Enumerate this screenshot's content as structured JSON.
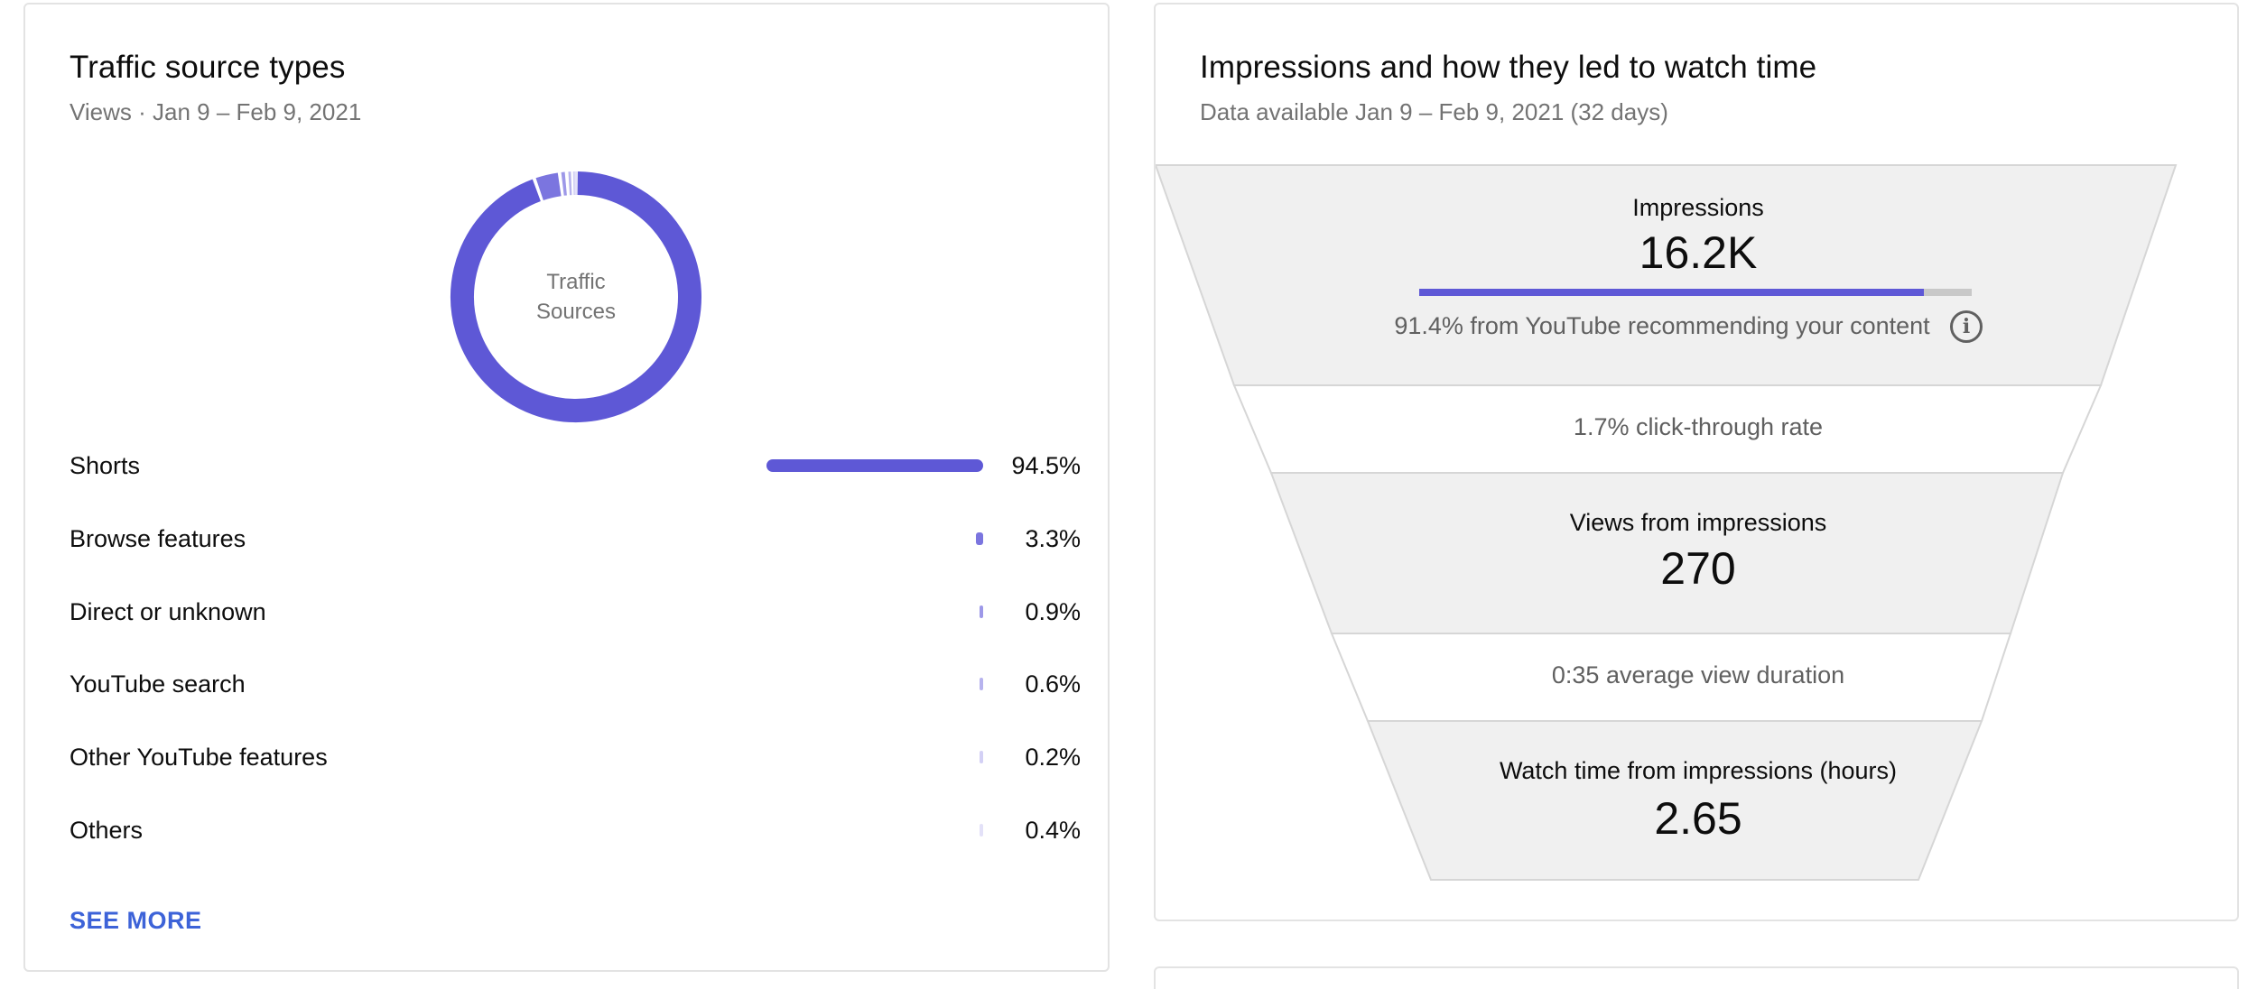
{
  "traffic": {
    "title": "Traffic source types",
    "subtitle": "Views · Jan 9 – Feb 9, 2021",
    "donut_center_line1": "Traffic",
    "donut_center_line2": "Sources",
    "see_more_label": "SEE MORE",
    "sources": [
      {
        "label": "Shorts",
        "value_text": "94.5%",
        "value": 94.5,
        "color": "#5e58d6"
      },
      {
        "label": "Browse features",
        "value_text": "3.3%",
        "value": 3.3,
        "color": "#7b75df"
      },
      {
        "label": "Direct or unknown",
        "value_text": "0.9%",
        "value": 0.9,
        "color": "#9d98e8"
      },
      {
        "label": "YouTube search",
        "value_text": "0.6%",
        "value": 0.6,
        "color": "#b7b3ee"
      },
      {
        "label": "Other YouTube features",
        "value_text": "0.2%",
        "value": 0.2,
        "color": "#d3d0f5"
      },
      {
        "label": "Others",
        "value_text": "0.4%",
        "value": 0.4,
        "color": "#e3e1f8"
      }
    ]
  },
  "funnel": {
    "title": "Impressions and how they led to watch time",
    "subtitle": "Data available Jan 9 – Feb 9, 2021 (32 days)",
    "impressions_label": "Impressions",
    "impressions_value": "16.2K",
    "recommend_note": "91.4% from YouTube recommending your content",
    "recommend_fraction": 0.914,
    "ctr_note": "1.7% click-through rate",
    "views_label": "Views from impressions",
    "views_value": "270",
    "avd_note": "0:35 average view duration",
    "watch_label": "Watch time from impressions (hours)",
    "watch_value": "2.65",
    "info_icon": "info-icon"
  },
  "colors": {
    "accent": "#5e58d6",
    "link": "#3d63d8",
    "funnel_fill": "#f0f0f0",
    "funnel_stroke": "#d6d6d6"
  }
}
